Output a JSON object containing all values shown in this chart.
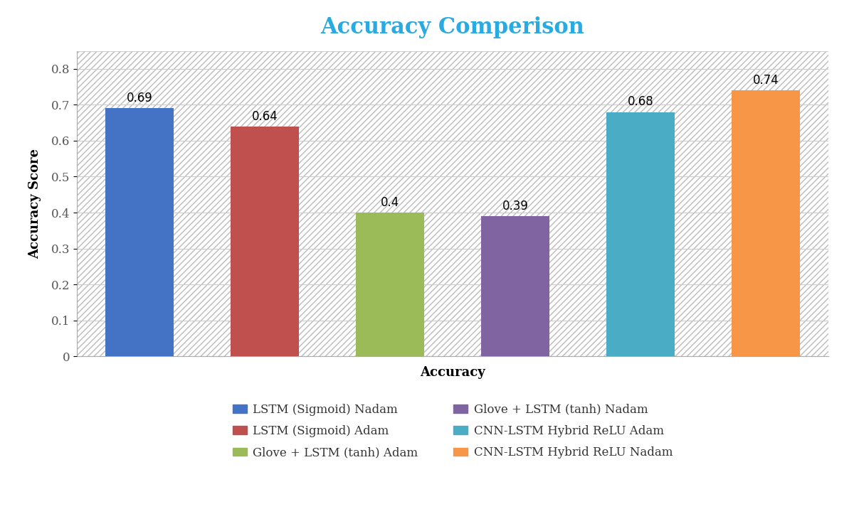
{
  "title": "Accuracy Comperison",
  "title_color": "#29ABE2",
  "xlabel": "Accuracy",
  "ylabel": "Accuracy Score",
  "values": [
    0.69,
    0.64,
    0.4,
    0.39,
    0.68,
    0.74
  ],
  "bar_colors": [
    "#4472C4",
    "#C0504D",
    "#9BBB59",
    "#8064A2",
    "#4BACC6",
    "#F79646"
  ],
  "ylim": [
    0,
    0.85
  ],
  "yticks": [
    0,
    0.1,
    0.2,
    0.3,
    0.4,
    0.5,
    0.6,
    0.7,
    0.8
  ],
  "legend_labels": [
    "LSTM (Sigmoid) Nadam",
    "LSTM (Sigmoid) Adam",
    "Glove + LSTM (tanh) Adam",
    "Glove + LSTM (tanh) Nadam",
    "CNN-LSTM Hybrid ReLU Adam",
    "CNN-LSTM Hybrid ReLU Nadam"
  ],
  "annotation_fontsize": 12,
  "label_fontsize": 13,
  "title_fontsize": 22,
  "tick_fontsize": 12,
  "legend_fontsize": 12,
  "background_color": "#FFFFFF",
  "bar_width": 0.55,
  "bar_gap": 0.3
}
